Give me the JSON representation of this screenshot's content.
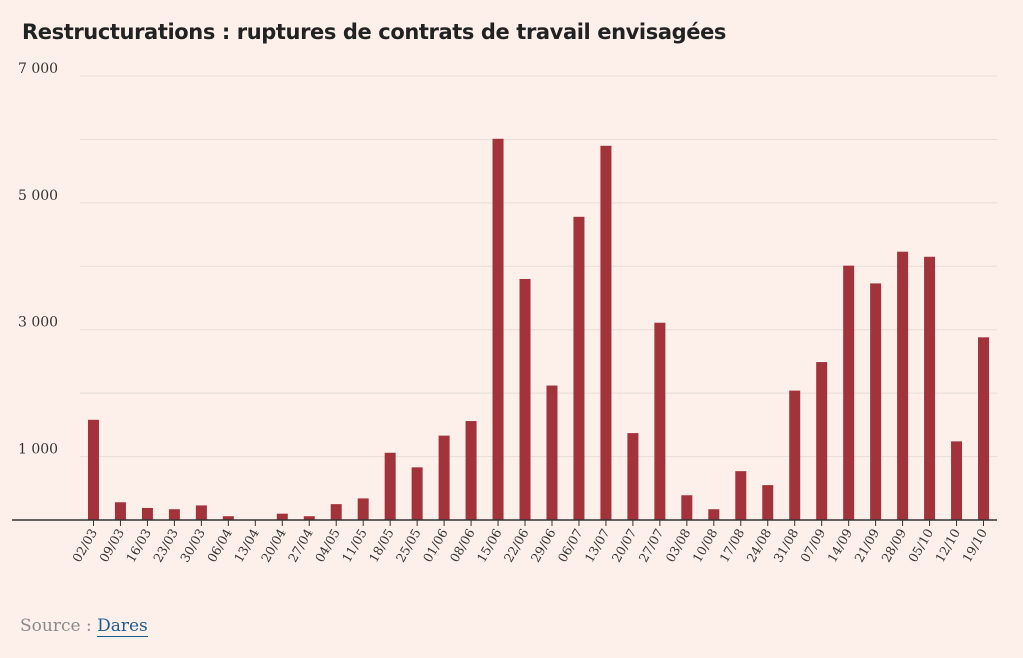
{
  "title": "Restructurations : ruptures de contrats de travail envisagées",
  "source": {
    "label": "Source :",
    "link_text": "Dares"
  },
  "colors": {
    "bar": "#a3333a",
    "background": "#fdf0ea",
    "grid": "#e6dcd8",
    "axis": "#333333"
  },
  "chart_data": {
    "type": "bar",
    "title": "Restructurations : ruptures de contrats de travail envisagées",
    "xlabel": "",
    "ylabel": "",
    "ylim": [
      0,
      7000
    ],
    "grid": true,
    "ytick_values": [
      1000,
      2000,
      3000,
      4000,
      5000,
      6000,
      7000
    ],
    "ytick_labels": [
      "1 000",
      "3 000",
      "5 000",
      "7 000"
    ],
    "ytick_label_values": [
      1000,
      3000,
      5000,
      7000
    ],
    "categories": [
      "02/03",
      "09/03",
      "16/03",
      "23/03",
      "30/03",
      "06/04",
      "13/04",
      "20/04",
      "27/04",
      "04/05",
      "11/05",
      "18/05",
      "25/05",
      "01/06",
      "08/06",
      "15/06",
      "22/06",
      "29/06",
      "06/07",
      "13/07",
      "20/07",
      "27/07",
      "03/08",
      "10/08",
      "17/08",
      "24/08",
      "31/08",
      "07/09",
      "14/09",
      "21/09",
      "28/09",
      "05/10",
      "12/10",
      "19/10"
    ],
    "values": [
      1580,
      280,
      190,
      170,
      230,
      60,
      0,
      100,
      60,
      250,
      340,
      1060,
      830,
      1330,
      1560,
      6010,
      3800,
      2120,
      4780,
      5900,
      1370,
      3110,
      390,
      170,
      770,
      550,
      2040,
      2490,
      4010,
      3730,
      4230,
      4150,
      1240,
      2880
    ]
  }
}
